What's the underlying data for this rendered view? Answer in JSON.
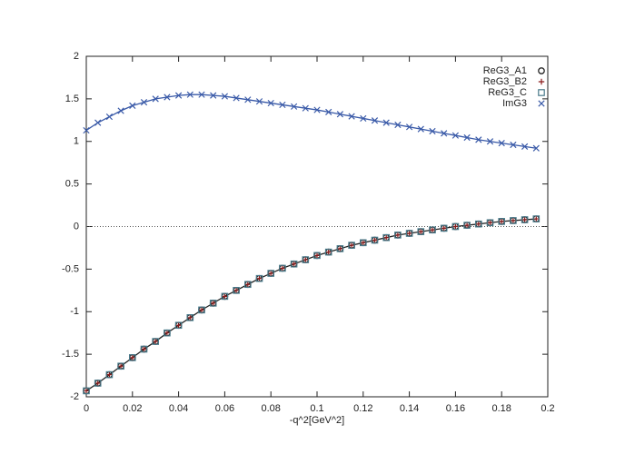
{
  "chart_data": {
    "type": "line",
    "x_label": "-q^2[GeV^2]",
    "x": [
      0,
      0.005,
      0.01,
      0.015,
      0.02,
      0.025,
      0.03,
      0.035,
      0.04,
      0.045,
      0.05,
      0.055,
      0.06,
      0.065,
      0.07,
      0.075,
      0.08,
      0.085,
      0.09,
      0.095,
      0.1,
      0.105,
      0.11,
      0.115,
      0.12,
      0.125,
      0.13,
      0.135,
      0.14,
      0.145,
      0.15,
      0.155,
      0.16,
      0.165,
      0.17,
      0.175,
      0.18,
      0.185,
      0.19,
      0.195
    ],
    "series": [
      {
        "name": "ReG3_A1",
        "color": "#222222",
        "marker": "circle",
        "line": true,
        "values": [
          -1.93,
          -1.84,
          -1.74,
          -1.64,
          -1.54,
          -1.44,
          -1.35,
          -1.25,
          -1.16,
          -1.07,
          -0.98,
          -0.9,
          -0.82,
          -0.75,
          -0.68,
          -0.61,
          -0.55,
          -0.49,
          -0.44,
          -0.39,
          -0.34,
          -0.3,
          -0.26,
          -0.22,
          -0.19,
          -0.16,
          -0.13,
          -0.1,
          -0.08,
          -0.06,
          -0.04,
          -0.02,
          0,
          0.015,
          0.03,
          0.045,
          0.06,
          0.07,
          0.08,
          0.09
        ]
      },
      {
        "name": "ReG3_B2",
        "color": "#8b1a1a",
        "marker": "plus",
        "line": false,
        "values": [
          -1.93,
          -1.84,
          -1.74,
          -1.64,
          -1.54,
          -1.44,
          -1.35,
          -1.25,
          -1.16,
          -1.07,
          -0.98,
          -0.9,
          -0.82,
          -0.75,
          -0.68,
          -0.61,
          -0.55,
          -0.49,
          -0.44,
          -0.39,
          -0.34,
          -0.3,
          -0.26,
          -0.22,
          -0.19,
          -0.16,
          -0.13,
          -0.1,
          -0.08,
          -0.06,
          -0.04,
          -0.02,
          0,
          0.015,
          0.03,
          0.045,
          0.06,
          0.07,
          0.08,
          0.09
        ]
      },
      {
        "name": "ReG3_C",
        "color": "#4a7a8a",
        "marker": "square",
        "line": false,
        "values": [
          -1.93,
          -1.84,
          -1.74,
          -1.64,
          -1.54,
          -1.44,
          -1.35,
          -1.25,
          -1.16,
          -1.07,
          -0.98,
          -0.9,
          -0.82,
          -0.75,
          -0.68,
          -0.61,
          -0.55,
          -0.49,
          -0.44,
          -0.39,
          -0.34,
          -0.3,
          -0.26,
          -0.22,
          -0.19,
          -0.16,
          -0.13,
          -0.1,
          -0.08,
          -0.06,
          -0.04,
          -0.02,
          0,
          0.015,
          0.03,
          0.045,
          0.06,
          0.07,
          0.08,
          0.09
        ]
      },
      {
        "name": "ImG3",
        "color": "#3a5aa8",
        "marker": "x",
        "line": true,
        "values": [
          1.13,
          1.22,
          1.29,
          1.36,
          1.42,
          1.46,
          1.5,
          1.52,
          1.54,
          1.55,
          1.55,
          1.54,
          1.53,
          1.51,
          1.49,
          1.47,
          1.45,
          1.43,
          1.41,
          1.39,
          1.37,
          1.345,
          1.32,
          1.295,
          1.27,
          1.245,
          1.22,
          1.195,
          1.17,
          1.145,
          1.12,
          1.095,
          1.07,
          1.045,
          1.02,
          1,
          0.98,
          0.96,
          0.94,
          0.92
        ]
      }
    ],
    "xlim": [
      0,
      0.2
    ],
    "xticks": [
      0,
      0.02,
      0.04,
      0.06,
      0.08,
      0.1,
      0.12,
      0.14,
      0.16,
      0.18,
      0.2
    ],
    "ylim": [
      -2,
      2
    ],
    "yticks": [
      -2,
      -1.5,
      -1,
      -0.5,
      0,
      0.5,
      1,
      1.5,
      2
    ],
    "zero_line": true,
    "legend": "top-right"
  }
}
